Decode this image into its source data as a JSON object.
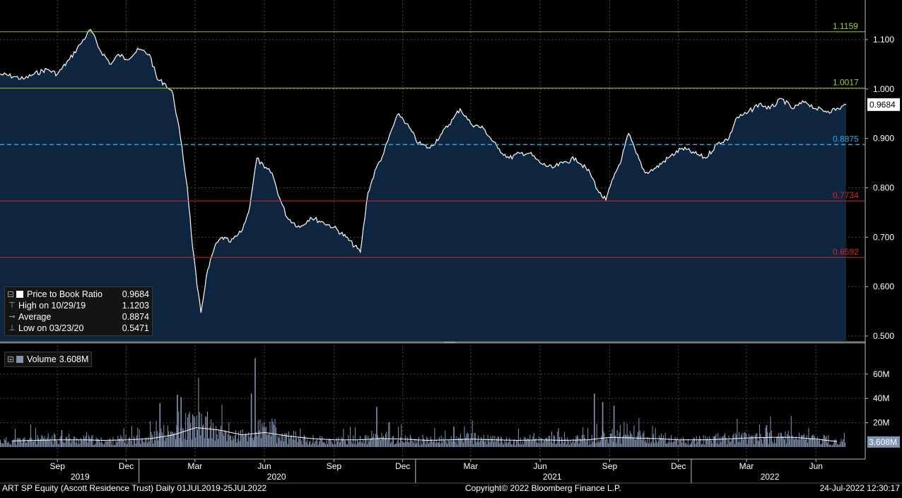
{
  "chart_data": [
    {
      "type": "area",
      "title": "",
      "ylim": [
        0.49,
        1.13
      ],
      "y_ticks": [
        "0.500",
        "0.600",
        "0.700",
        "0.800",
        "0.900",
        "1.000",
        "1.100"
      ],
      "grid": true,
      "legend_placement": "bottom-left",
      "legend": [
        {
          "label": "Price to Book Ratio",
          "value": "0.9684"
        },
        {
          "label": "High on 10/29/19",
          "value": "1.1203"
        },
        {
          "label": "Average",
          "value": "0.8874"
        },
        {
          "label": "Low on 03/23/20",
          "value": "0.5471"
        }
      ],
      "last_value_label": "0.9684",
      "reference_lines": [
        {
          "value": 1.1159,
          "label": "1.1159",
          "color": "#9bd22b",
          "style": "solid"
        },
        {
          "value": 1.0017,
          "label": "1.0017",
          "color": "#9bd22b",
          "style": "solid"
        },
        {
          "value": 0.8875,
          "label": "0.8875",
          "color": "#29a9e0",
          "style": "dashed"
        },
        {
          "value": 0.7734,
          "label": "0.7734",
          "color": "#e0201f",
          "style": "solid"
        },
        {
          "value": 0.6592,
          "label": "0.6592",
          "color": "#e0201f",
          "style": "solid"
        }
      ],
      "series": [
        {
          "name": "Price to Book Ratio",
          "x": [
            "2019-07-01",
            "2019-07-20",
            "2019-08-01",
            "2019-08-15",
            "2019-09-01",
            "2019-09-15",
            "2019-10-01",
            "2019-10-15",
            "2019-10-29",
            "2019-11-10",
            "2019-11-25",
            "2019-12-05",
            "2019-12-15",
            "2020-01-01",
            "2020-01-15",
            "2020-01-25",
            "2020-02-05",
            "2020-02-15",
            "2020-02-25",
            "2020-03-05",
            "2020-03-12",
            "2020-03-18",
            "2020-03-23",
            "2020-03-30",
            "2020-04-10",
            "2020-04-20",
            "2020-05-01",
            "2020-05-15",
            "2020-05-25",
            "2020-06-05",
            "2020-06-15",
            "2020-06-25",
            "2020-07-05",
            "2020-07-15",
            "2020-08-01",
            "2020-08-15",
            "2020-09-01",
            "2020-09-15",
            "2020-10-01",
            "2020-10-20",
            "2020-10-30",
            "2020-11-10",
            "2020-11-20",
            "2020-12-01",
            "2020-12-10",
            "2020-12-20",
            "2021-01-05",
            "2021-01-20",
            "2021-02-05",
            "2021-02-20",
            "2021-03-01",
            "2021-03-15",
            "2021-04-01",
            "2021-04-20",
            "2021-05-05",
            "2021-05-20",
            "2021-06-01",
            "2021-06-15",
            "2021-07-01",
            "2021-07-15",
            "2021-08-01",
            "2021-08-20",
            "2021-09-01",
            "2021-09-10",
            "2021-09-20",
            "2021-10-01",
            "2021-10-10",
            "2021-10-20",
            "2021-11-01",
            "2021-11-15",
            "2021-12-01",
            "2021-12-20",
            "2022-01-05",
            "2022-01-20",
            "2022-02-05",
            "2022-02-20",
            "2022-03-01",
            "2022-03-15",
            "2022-04-01",
            "2022-04-15",
            "2022-05-01",
            "2022-05-15",
            "2022-06-01",
            "2022-06-15",
            "2022-07-01",
            "2022-07-15",
            "2022-07-25"
          ],
          "y": [
            1.03,
            1.025,
            1.02,
            1.03,
            1.04,
            1.03,
            1.06,
            1.09,
            1.1203,
            1.08,
            1.05,
            1.07,
            1.06,
            1.08,
            1.07,
            1.02,
            1.01,
            0.99,
            0.9,
            0.8,
            0.68,
            0.6,
            0.5471,
            0.62,
            0.68,
            0.7,
            0.69,
            0.71,
            0.75,
            0.86,
            0.84,
            0.83,
            0.78,
            0.74,
            0.72,
            0.74,
            0.73,
            0.72,
            0.7,
            0.67,
            0.79,
            0.84,
            0.87,
            0.92,
            0.95,
            0.93,
            0.89,
            0.88,
            0.91,
            0.94,
            0.96,
            0.93,
            0.92,
            0.88,
            0.86,
            0.87,
            0.87,
            0.85,
            0.84,
            0.85,
            0.86,
            0.83,
            0.79,
            0.775,
            0.82,
            0.86,
            0.91,
            0.87,
            0.83,
            0.84,
            0.86,
            0.88,
            0.87,
            0.86,
            0.89,
            0.9,
            0.94,
            0.95,
            0.97,
            0.96,
            0.98,
            0.96,
            0.975,
            0.96,
            0.955,
            0.96,
            0.9684
          ]
        }
      ]
    },
    {
      "type": "bar",
      "title": "",
      "ylim": [
        0,
        75
      ],
      "y_ticks": [
        "20M",
        "40M",
        "60M"
      ],
      "legend": [
        {
          "label": "Volume",
          "value": "3.608M"
        }
      ],
      "last_value_label": "3.608M",
      "unit": "M",
      "x_tick_labels": [
        "Sep",
        "Dec",
        "Mar",
        "Jun",
        "Sep",
        "Dec",
        "Mar",
        "Jun",
        "Sep",
        "Dec",
        "Mar",
        "Jun"
      ],
      "year_labels": [
        "2019",
        "2020",
        "2021",
        "2022"
      ],
      "series": [
        {
          "name": "Volume",
          "x": [
            "2019-07",
            "2019-08",
            "2019-09",
            "2019-10",
            "2019-11",
            "2019-12",
            "2020-01",
            "2020-02",
            "2020-03",
            "2020-04",
            "2020-05",
            "2020-06",
            "2020-07",
            "2020-08",
            "2020-09",
            "2020-10",
            "2020-11",
            "2020-12",
            "2021-01",
            "2021-02",
            "2021-03",
            "2021-04",
            "2021-05",
            "2021-06",
            "2021-07",
            "2021-08",
            "2021-09",
            "2021-10",
            "2021-11",
            "2021-12",
            "2022-01",
            "2022-02",
            "2022-03",
            "2022-04",
            "2022-05",
            "2022-06",
            "2022-07"
          ],
          "values": [
            5,
            6,
            7,
            6,
            5,
            6,
            8,
            11,
            18,
            12,
            9,
            14,
            8,
            6,
            5,
            6,
            8,
            6,
            5,
            6,
            7,
            6,
            5,
            6,
            5,
            6,
            9,
            8,
            7,
            5,
            6,
            7,
            8,
            8,
            8,
            6,
            4
          ],
          "spikes": [
            [
              "2019-09-20",
              14
            ],
            [
              "2020-01-28",
              36
            ],
            [
              "2020-02-20",
              43
            ],
            [
              "2020-02-25",
              41
            ],
            [
              "2020-06-02",
              73
            ],
            [
              "2020-05-28",
              44
            ],
            [
              "2020-11-10",
              33
            ],
            [
              "2021-02-20",
              17
            ],
            [
              "2021-08-25",
              44
            ],
            [
              "2021-09-05",
              37
            ],
            [
              "2021-09-20",
              34
            ],
            [
              "2022-04-10",
              18
            ]
          ]
        },
        {
          "name": "Moving Average",
          "values": [
            5,
            5.5,
            6,
            6,
            5.5,
            6,
            7,
            10,
            16,
            14,
            10,
            12,
            9,
            7,
            6,
            6,
            7,
            6.5,
            5.5,
            6,
            6.5,
            6,
            5.5,
            6,
            5.5,
            6,
            8,
            7.5,
            7,
            6,
            6,
            6.5,
            7.5,
            8,
            8,
            6.5,
            4.5
          ]
        }
      ]
    }
  ],
  "footer": {
    "left": "ART SP Equity (Ascott Residence Trust)  Daily 01JUL2019-25JUL2022",
    "center": "Copyright© 2022 Bloomberg Finance L.P.",
    "right": "24-Jul-2022  12:30:17"
  },
  "colors": {
    "line": "#ffffff",
    "area": "#0e2540",
    "volume_bar": "#8294b4",
    "grid": "#4a4a4a"
  }
}
